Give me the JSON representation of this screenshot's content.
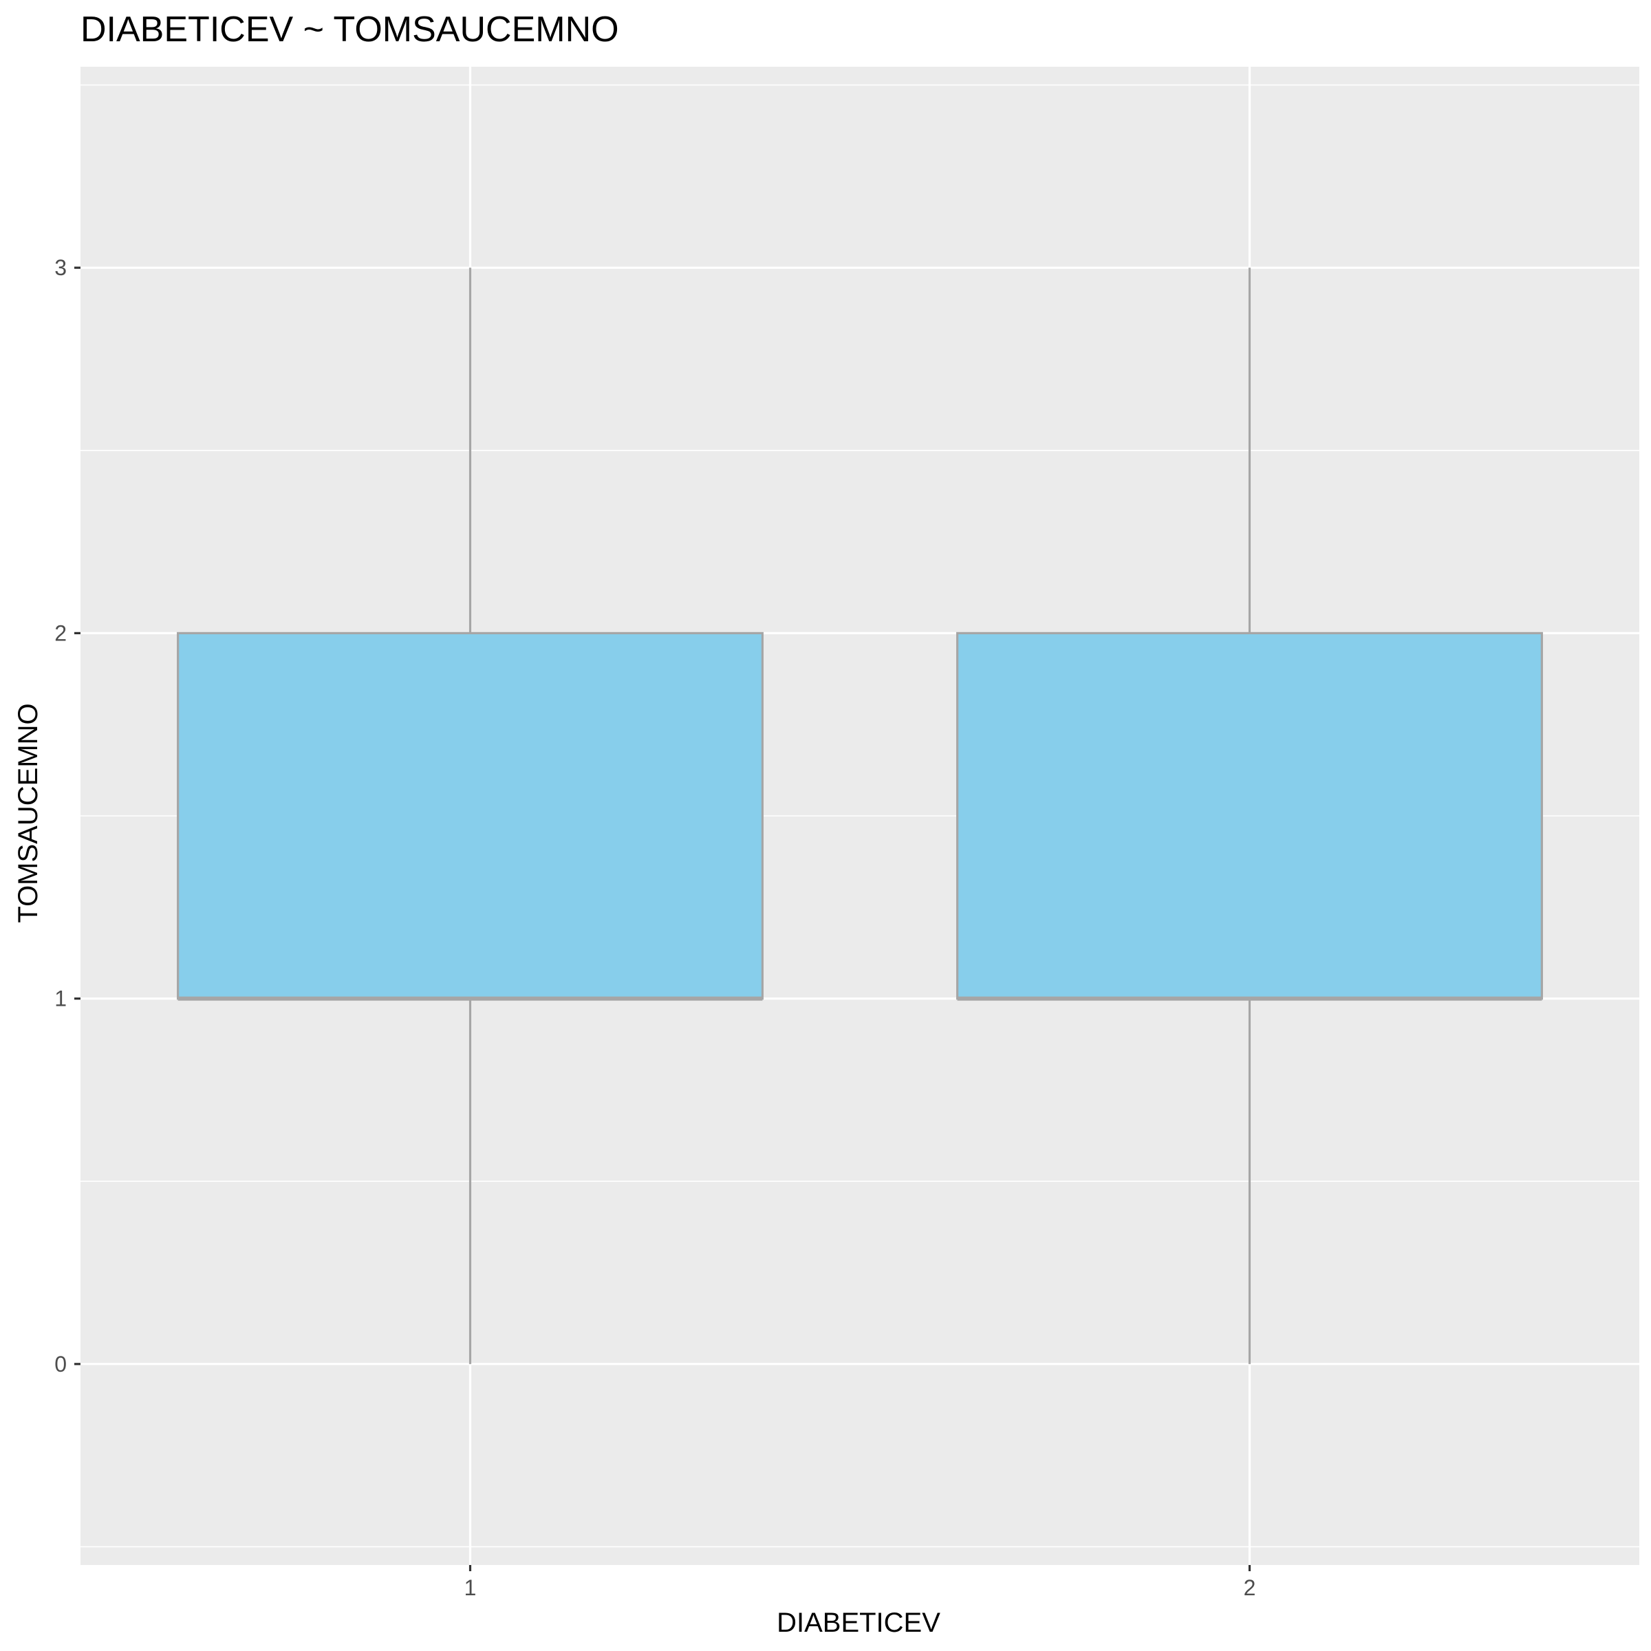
{
  "chart_data": {
    "type": "boxplot",
    "title": "DIABETICEV ~ TOMSAUCEMNO",
    "xlabel": "DIABETICEV",
    "ylabel": "TOMSAUCEMNO",
    "categories": [
      "1",
      "2"
    ],
    "ylim": [
      -0.55,
      3.55
    ],
    "y_ticks": [
      0,
      1,
      2,
      3
    ],
    "grid": true,
    "boxes": [
      {
        "category": "1",
        "min": 0,
        "q1": 1,
        "median": 1,
        "q3": 2,
        "max": 3
      },
      {
        "category": "2",
        "min": 0,
        "q1": 1,
        "median": 1,
        "q3": 2,
        "max": 3
      }
    ],
    "colors": {
      "panel_background": "#ebebeb",
      "grid": "#ffffff",
      "box_fill": "#87ceeb",
      "box_outline": "#a6a6a6",
      "tick_label": "#4d4d4d",
      "tick_mark": "#333333"
    }
  }
}
